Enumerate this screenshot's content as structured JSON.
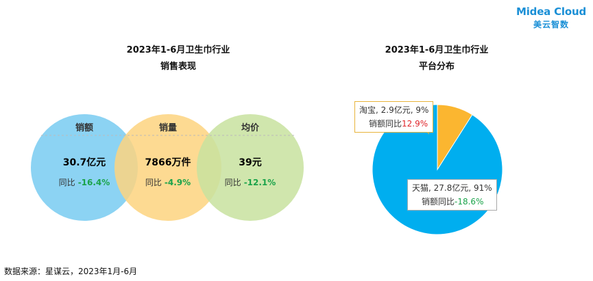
{
  "brand": {
    "name": "Midea Cloud",
    "sub": "美云智数"
  },
  "left": {
    "title_line1": "2023年1-6月卫生巾行业",
    "title_line2": "销售表现"
  },
  "right": {
    "title_line1": "2023年1-6月卫生巾行业",
    "title_line2": "平台分布"
  },
  "footer": "数据来源：星谋云，2023年1月-6月",
  "colors": {
    "circle_sales": "#82cff2",
    "circle_volume": "#fdd37f",
    "circle_price": "#c8e29f",
    "tmall": "#00aeef",
    "taobao": "#fbb630",
    "positive": "#e0262b",
    "negative": "#1aa34a"
  },
  "chart_data": [
    {
      "type": "venn-metrics",
      "title": "2023年1-6月卫生巾行业 销售表现",
      "metrics": [
        {
          "name": "销额",
          "value": "30.7亿元",
          "yoy_label": "同比",
          "yoy": "-16.4%"
        },
        {
          "name": "销量",
          "value": "7866万件",
          "yoy_label": "同比",
          "yoy": "-4.9%"
        },
        {
          "name": "均价",
          "value": "39元",
          "yoy_label": "同比",
          "yoy": "-12.1%"
        }
      ]
    },
    {
      "type": "pie",
      "title": "2023年1-6月卫生巾行业 平台分布",
      "slices": [
        {
          "name": "天猫",
          "value": 27.8,
          "unit": "亿元",
          "share": 91,
          "label": "天猫, 27.8亿元, 91%",
          "yoy_label": "销额同比",
          "yoy": "-18.6%"
        },
        {
          "name": "淘宝",
          "value": 2.9,
          "unit": "亿元",
          "share": 9,
          "label": "淘宝, 2.9亿元, 9%",
          "yoy_label": "销额同比",
          "yoy": "12.9%"
        }
      ]
    }
  ]
}
